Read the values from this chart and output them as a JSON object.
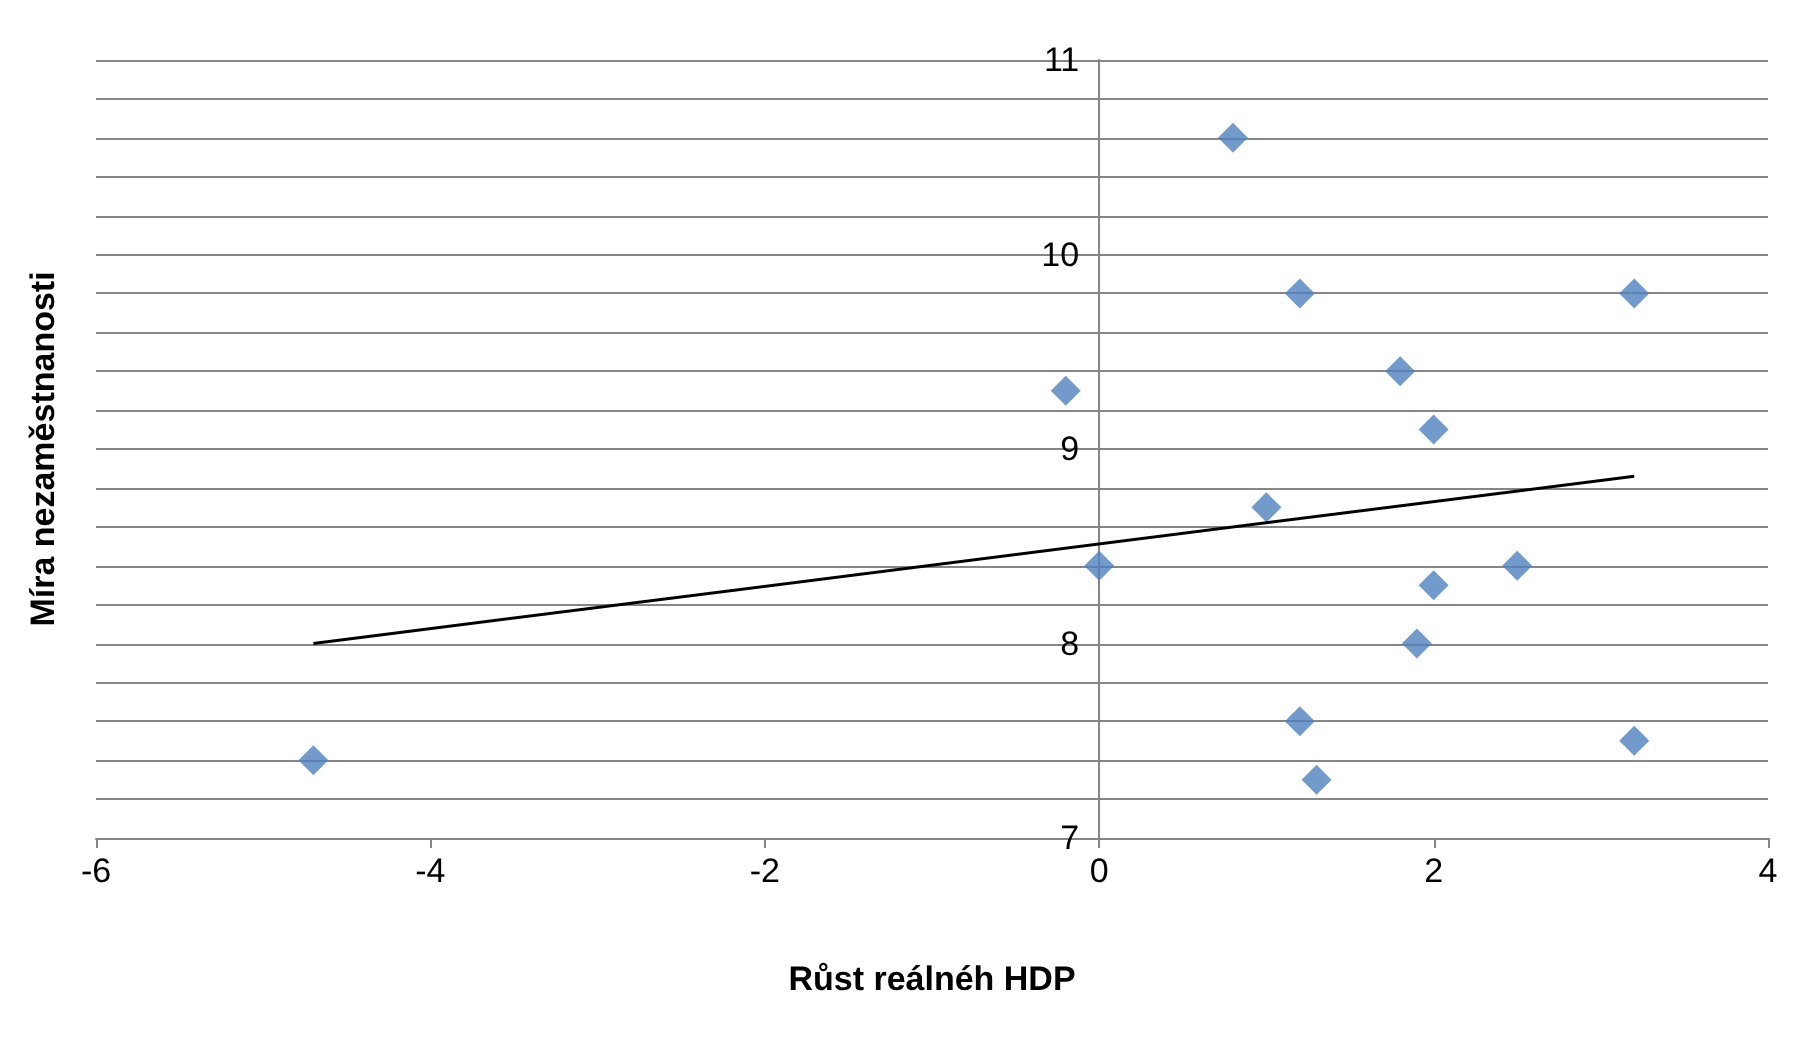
{
  "chart_data": {
    "type": "scatter",
    "xlabel": "Růst reálnéh HDP",
    "ylabel": "Míra nezaměstnanosti",
    "xlim": [
      -6,
      4
    ],
    "xticks": [
      -6,
      -4,
      -2,
      0,
      2,
      4
    ],
    "ylim": [
      7,
      11
    ],
    "yticks": [
      7,
      {
        "value": 7.2,
        "label": null
      },
      {
        "value": 7.4,
        "label": null
      },
      {
        "value": 7.6,
        "label": null
      },
      {
        "value": 7.8,
        "label": null
      },
      8,
      {
        "value": 8.2,
        "label": null
      },
      {
        "value": 8.4,
        "label": null
      },
      {
        "value": 8.6,
        "label": null
      },
      {
        "value": 8.8,
        "label": null
      },
      9,
      {
        "value": 9.2,
        "label": null
      },
      {
        "value": 9.4,
        "label": null
      },
      {
        "value": 9.6,
        "label": null
      },
      {
        "value": 9.8,
        "label": null
      },
      10,
      {
        "value": 10.2,
        "label": null
      },
      {
        "value": 10.4,
        "label": null
      },
      {
        "value": 10.6,
        "label": null
      },
      {
        "value": 10.8,
        "label": null
      },
      11
    ],
    "grid": "y",
    "marker": "diamond",
    "series": [
      {
        "color": "#4f81bd",
        "x": [
          -4.7,
          0.8,
          1.2,
          3.2,
          -0.2,
          1.8,
          2.0,
          1.0,
          0,
          2.5,
          2.0,
          1.9,
          1.2,
          3.2,
          1.3
        ],
        "values": [
          7.4,
          10.6,
          9.8,
          9.8,
          9.3,
          9.4,
          9.1,
          8.7,
          8.4,
          8.4,
          8.3,
          8.0,
          7.6,
          7.5,
          7.3
        ]
      },
      {
        "type": "line",
        "color": "#000000",
        "marker": "none",
        "x": [
          -4.7,
          3.2
        ],
        "values": [
          8.0,
          8.86
        ]
      }
    ]
  }
}
